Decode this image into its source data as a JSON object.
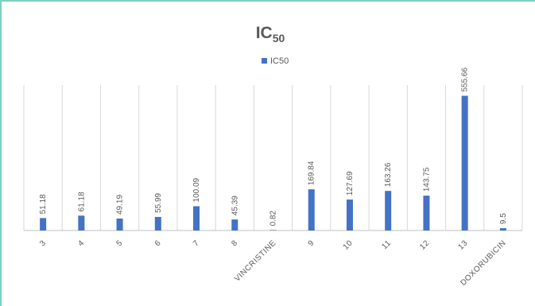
{
  "chart_data": {
    "type": "bar",
    "title": "IC",
    "title_subscript": "50",
    "legend": {
      "label": "IC50",
      "placement": "top-center"
    },
    "categories": [
      "3",
      "4",
      "5",
      "6",
      "7",
      "8",
      "VINCRISTINE",
      "9",
      "10",
      "11",
      "12",
      "13",
      "DOXORUBICIN"
    ],
    "series": [
      {
        "name": "IC50",
        "values": [
          51.18,
          61.18,
          49.19,
          55.99,
          100.09,
          45.39,
          0.82,
          169.84,
          127.69,
          163.26,
          143.75,
          555.66,
          9.5
        ],
        "labels": [
          "51.18",
          "61.18",
          "49.19",
          "55.99",
          "100.09",
          "45.39",
          "0.82",
          "169.84",
          "127.69",
          "163.26",
          "143.75",
          "555.66",
          "9.5"
        ]
      }
    ],
    "ylim": [
      0,
      600
    ],
    "grid": "vertical",
    "xlabel": "",
    "ylabel": ""
  },
  "colors": {
    "bar": "#4472c4",
    "gridline": "#d9d9d9",
    "axis": "#bfbfbf",
    "text": "#595959",
    "frame": "#7fcfc3"
  }
}
